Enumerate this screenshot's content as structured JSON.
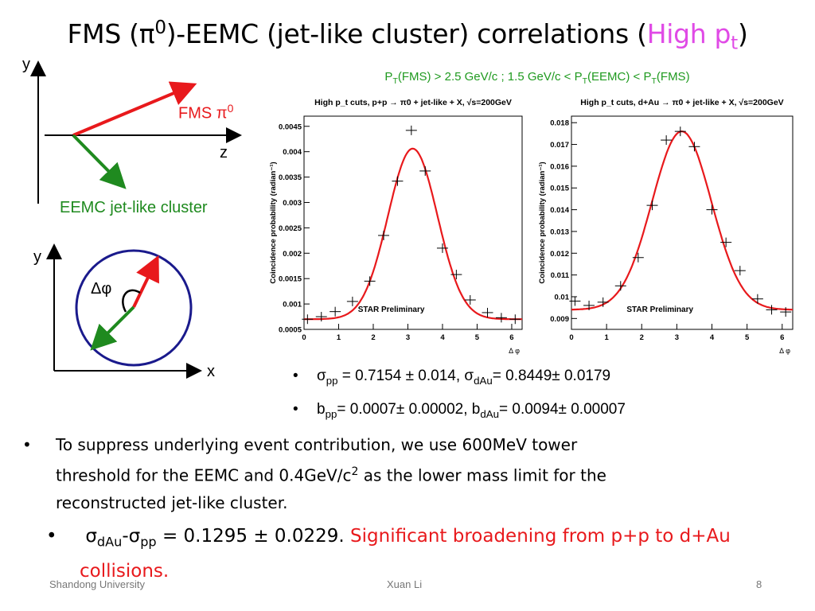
{
  "slide": {
    "title_main": "FMS (π",
    "title_sup": "0",
    "title_rest": ")-EEMC (jet-like cluster) correlations (",
    "title_high": "High p",
    "title_high_sub": "t",
    "title_close": ")",
    "cuts_p1": "P",
    "cuts_s1": "T",
    "cuts_p2": "(FMS) > 2.5 GeV/c ; 1.5 GeV/c < P",
    "cuts_s2": "T",
    "cuts_p3": "(EEMC) < P",
    "cuts_s3": "T",
    "cuts_p4": "(FMS)"
  },
  "diagram": {
    "y1": "y",
    "z": "z",
    "fms_label": "FMS π",
    "fms_sup": "0",
    "eemc_label": "EEMC jet-like cluster",
    "y2": "y",
    "x": "x",
    "dphi": "Δφ",
    "colors": {
      "fms": "#e8191c",
      "eemc": "#1f8a1f",
      "circle": "#1a1a8c"
    }
  },
  "results": {
    "b1_sym": "σ",
    "b1_sub1": "pp",
    "b1_mid": " = 0.7154 ± 0.014, σ",
    "b1_sub2": "dAu",
    "b1_end": "= 0.8449± 0.0179",
    "b2_sym": "b",
    "b2_sub1": "pp",
    "b2_mid": "= 0.0007± 0.00002, b",
    "b2_sub2": "dAu",
    "b2_end": "= 0.0094± 0.00007"
  },
  "text": {
    "para_line1": "To suppress underlying event contribution, we use 600MeV tower",
    "para_line2a": "threshold for the EEMC and 0.4GeV/c",
    "para_sup": "2",
    "para_line2b": " as the lower mass limit for the",
    "para_line3": "reconstructed jet-like cluster.",
    "big_sym1": "σ",
    "big_sub1": "dAu",
    "big_sym2": "-σ",
    "big_sub2": "pp",
    "big_val": " = 0.1295 ± 0.0229. ",
    "big_red": "Significant broadening from p+p to d+Au collisions."
  },
  "footer": {
    "left": "Shandong University",
    "center": "Xuan Li",
    "right": "8"
  },
  "chart_data": [
    {
      "type": "scatter",
      "title": "High p_t cuts, p+p → π0 + jet-like + X, √s=200GeV",
      "ylabel": "Coincidence probability (radian⁻¹)",
      "xlabel": "Δ φ",
      "annotation": "STAR Preliminary",
      "xlim": [
        0,
        6.3
      ],
      "ylim": [
        0.0005,
        0.0047
      ],
      "xticks": [
        "0",
        "1",
        "2",
        "3",
        "4",
        "5",
        "6"
      ],
      "yticks": [
        "0.0005",
        "0.001",
        "0.0015",
        "0.002",
        "0.0025",
        "0.003",
        "0.0035",
        "0.004",
        "0.0045"
      ],
      "x": [
        0.1,
        0.5,
        0.9,
        1.4,
        1.9,
        2.3,
        2.7,
        3.1,
        3.5,
        4.0,
        4.4,
        4.8,
        5.3,
        5.7,
        6.1
      ],
      "y": [
        0.0007,
        0.00075,
        0.00085,
        0.00105,
        0.00145,
        0.00235,
        0.00342,
        0.00442,
        0.00362,
        0.0021,
        0.00158,
        0.00108,
        0.00083,
        0.00073,
        0.0007
      ],
      "fit": {
        "model": "gaussian",
        "mean": 3.14,
        "sigma": 0.7154,
        "baseline": 0.0007,
        "peak": 0.00406,
        "color": "#e8191c"
      }
    },
    {
      "type": "scatter",
      "title": "High p_t cuts, d+Au → π0 + jet-like + X, √s=200GeV",
      "ylabel": "Coincidence probability (radian⁻¹)",
      "xlabel": "Δ φ",
      "annotation": "STAR Preliminary",
      "xlim": [
        0,
        6.3
      ],
      "ylim": [
        0.0085,
        0.0183
      ],
      "xticks": [
        "0",
        "1",
        "2",
        "3",
        "4",
        "5",
        "6"
      ],
      "yticks": [
        "0.009",
        "0.01",
        "0.011",
        "0.012",
        "0.013",
        "0.014",
        "0.015",
        "0.016",
        "0.017",
        "0.018"
      ],
      "x": [
        0.1,
        0.5,
        0.9,
        1.4,
        1.9,
        2.3,
        2.7,
        3.1,
        3.5,
        4.0,
        4.4,
        4.8,
        5.3,
        5.7,
        6.1
      ],
      "y": [
        0.0098,
        0.0096,
        0.00975,
        0.0105,
        0.0118,
        0.0142,
        0.0172,
        0.0176,
        0.0169,
        0.014,
        0.0125,
        0.0112,
        0.0099,
        0.0094,
        0.0093
      ],
      "fit": {
        "model": "gaussian",
        "mean": 3.14,
        "sigma": 0.8449,
        "baseline": 0.0094,
        "peak": 0.0176,
        "color": "#e8191c"
      }
    }
  ]
}
